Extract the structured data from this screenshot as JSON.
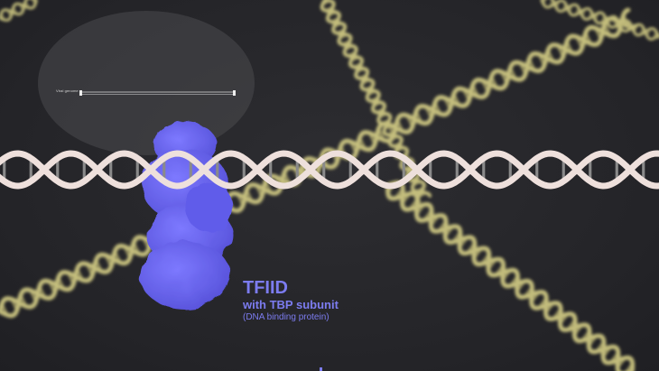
{
  "overlay": {
    "label": "Viral genome"
  },
  "protein": {
    "title": "TFIID",
    "subtitle": "with TBP subunit",
    "note": "(DNA binding protein)"
  },
  "colors": {
    "background": "#26262a",
    "protein": "#6b66f0",
    "label_text": "#7c7cf0",
    "dna_main": "#eee0dc",
    "dna_background": "#d6cf86",
    "overlay": "#4a4a4e"
  }
}
